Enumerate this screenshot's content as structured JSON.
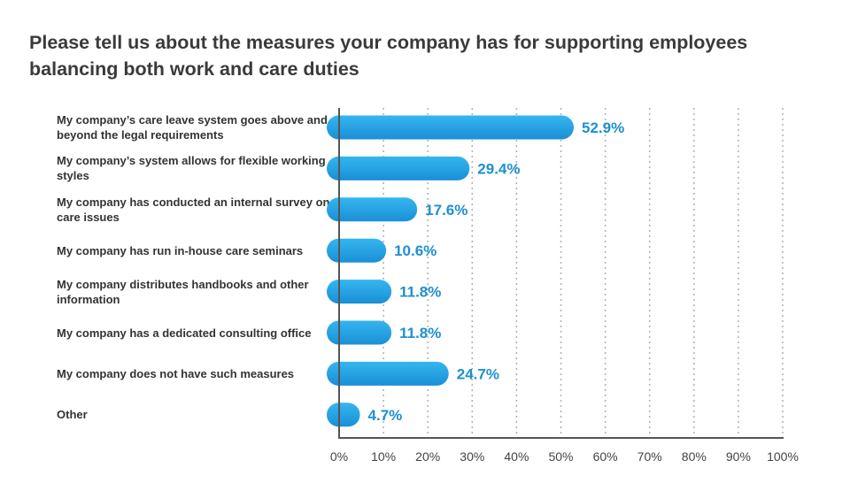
{
  "chart_data": {
    "type": "bar",
    "orientation": "horizontal",
    "title": "Please tell us about the measures your company has for supporting employees balancing both work and care duties",
    "categories": [
      "My company’s care leave system goes above and beyond the legal requirements",
      "My company’s system allows for flexible working styles",
      "My company has conducted an internal survey on care issues",
      "My company has run in-house care seminars",
      "My company distributes handbooks and other information",
      "My company has a dedicated consulting office",
      "My company does not have such measures",
      "Other"
    ],
    "values": [
      52.9,
      29.4,
      17.6,
      10.6,
      11.8,
      11.8,
      24.7,
      4.7
    ],
    "value_labels": [
      "52.9%",
      "29.4%",
      "17.6%",
      "10.6%",
      "11.8%",
      "11.8%",
      "24.7%",
      "4.7%"
    ],
    "xlim": [
      0,
      100
    ],
    "x_ticks": [
      0,
      10,
      20,
      30,
      40,
      50,
      60,
      70,
      80,
      90,
      100
    ],
    "x_tick_labels": [
      "0%",
      "10%",
      "20%",
      "30%",
      "40%",
      "50%",
      "60%",
      "70%",
      "80%",
      "90%",
      "100%"
    ],
    "xlabel": "",
    "ylabel": "",
    "grid": "vertical dotted",
    "legend": "none",
    "colors": {
      "bar_light": "#35b6ef",
      "bar_dark": "#1a8fd6",
      "value_text": "#1f8fd0",
      "grid": "#b0b0b0",
      "axis": "#555555"
    }
  }
}
